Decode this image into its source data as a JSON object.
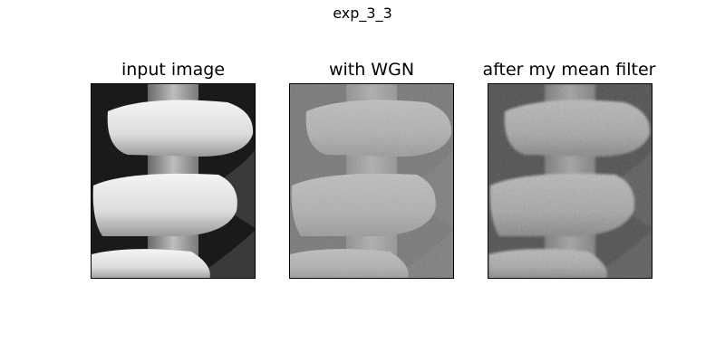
{
  "figure": {
    "suptitle": "exp_3_3",
    "panels": [
      {
        "title": "input image"
      },
      {
        "title": "with WGN"
      },
      {
        "title": "after my mean filter"
      }
    ]
  }
}
